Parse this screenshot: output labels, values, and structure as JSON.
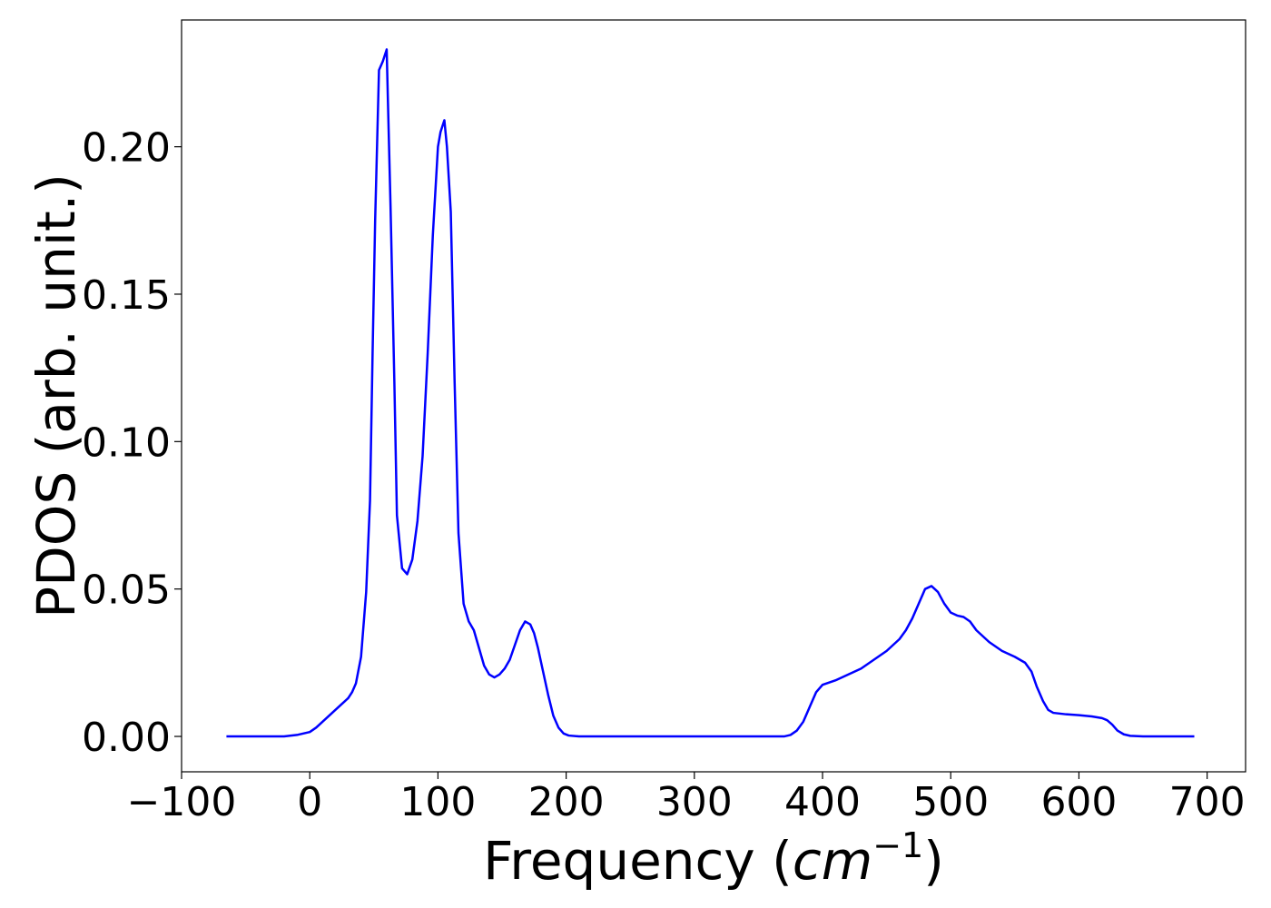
{
  "chart_data": {
    "type": "line",
    "xlabel_main": "Frequency (",
    "xlabel_math_base": "cm",
    "xlabel_math_sup": "−1",
    "xlabel_close": ")",
    "ylabel": "PDOS (arb. unit.)",
    "xlim": [
      -100,
      730
    ],
    "ylim": [
      -0.012,
      0.243
    ],
    "xticks": [
      -100,
      0,
      100,
      200,
      300,
      400,
      500,
      600,
      700
    ],
    "xtick_labels": [
      "−100",
      "0",
      "100",
      "200",
      "300",
      "400",
      "500",
      "600",
      "700"
    ],
    "yticks": [
      0.0,
      0.05,
      0.1,
      0.15,
      0.2
    ],
    "ytick_labels": [
      "0.00",
      "0.05",
      "0.10",
      "0.15",
      "0.20"
    ],
    "grid": false,
    "series": [
      {
        "color": "#0000ff",
        "x": [
          -65,
          -40,
          -20,
          -10,
          0,
          5,
          10,
          15,
          20,
          25,
          30,
          33,
          36,
          40,
          44,
          47,
          49,
          51,
          54,
          57,
          60,
          61,
          63,
          66,
          68,
          72,
          76,
          80,
          84,
          88,
          92,
          96,
          100,
          102,
          105,
          107,
          110,
          113,
          116,
          120,
          124,
          128,
          132,
          136,
          140,
          144,
          148,
          152,
          156,
          160,
          164,
          168,
          172,
          175,
          178,
          182,
          186,
          190,
          194,
          198,
          202,
          210,
          250,
          300,
          340,
          370,
          375,
          380,
          385,
          390,
          395,
          400,
          410,
          420,
          430,
          440,
          450,
          460,
          465,
          470,
          475,
          480,
          485,
          490,
          495,
          500,
          505,
          510,
          515,
          520,
          530,
          540,
          550,
          558,
          563,
          567,
          572,
          576,
          580,
          590,
          600,
          610,
          618,
          622,
          626,
          630,
          635,
          640,
          650,
          690
        ],
        "y": [
          0.0,
          0.0,
          0.0,
          0.0005,
          0.0015,
          0.003,
          0.005,
          0.007,
          0.009,
          0.011,
          0.013,
          0.015,
          0.018,
          0.027,
          0.049,
          0.08,
          0.13,
          0.175,
          0.226,
          0.229,
          0.233,
          0.215,
          0.18,
          0.12,
          0.075,
          0.057,
          0.055,
          0.06,
          0.073,
          0.095,
          0.13,
          0.17,
          0.2,
          0.205,
          0.209,
          0.2,
          0.178,
          0.12,
          0.069,
          0.045,
          0.039,
          0.036,
          0.03,
          0.024,
          0.021,
          0.02,
          0.021,
          0.023,
          0.026,
          0.031,
          0.036,
          0.039,
          0.038,
          0.035,
          0.03,
          0.022,
          0.014,
          0.007,
          0.003,
          0.001,
          0.0003,
          0.0,
          0.0,
          0.0,
          0.0,
          0.0,
          0.0005,
          0.002,
          0.005,
          0.01,
          0.015,
          0.0175,
          0.019,
          0.021,
          0.023,
          0.026,
          0.029,
          0.033,
          0.036,
          0.04,
          0.045,
          0.05,
          0.051,
          0.049,
          0.045,
          0.042,
          0.041,
          0.0405,
          0.039,
          0.036,
          0.032,
          0.029,
          0.027,
          0.025,
          0.022,
          0.017,
          0.012,
          0.009,
          0.008,
          0.0075,
          0.0072,
          0.0068,
          0.0062,
          0.0055,
          0.004,
          0.002,
          0.0007,
          0.0002,
          0.0,
          0.0
        ]
      }
    ]
  }
}
